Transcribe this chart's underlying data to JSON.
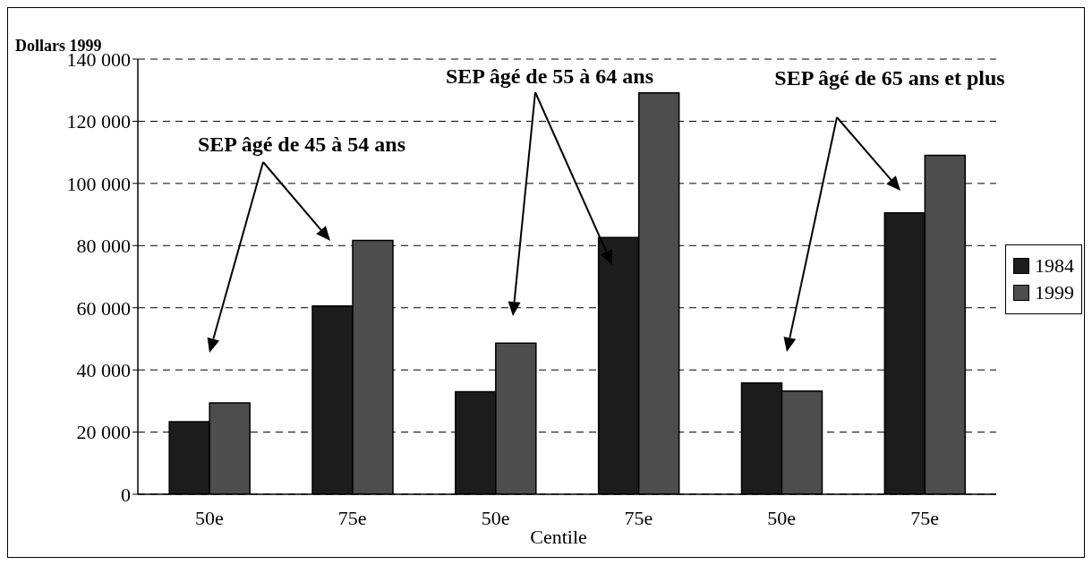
{
  "chart_data": {
    "type": "bar",
    "ylabel": "Dollars 1999",
    "xlabel": "Centile",
    "categories": [
      "50e",
      "75e",
      "50e",
      "75e",
      "50e",
      "75e"
    ],
    "series": [
      {
        "name": "1984",
        "color": "#1c1c1c",
        "values": [
          23300,
          60600,
          33000,
          82600,
          35800,
          90500
        ]
      },
      {
        "name": "1999",
        "color": "#4d4d4d",
        "values": [
          29400,
          81700,
          48600,
          129100,
          33200,
          109000
        ]
      }
    ],
    "ylim": [
      0,
      140000
    ],
    "yticks": [
      {
        "value": 0,
        "label": "0"
      },
      {
        "value": 20000,
        "label": "20 000"
      },
      {
        "value": 40000,
        "label": "40 000"
      },
      {
        "value": 60000,
        "label": "60 000"
      },
      {
        "value": 80000,
        "label": "80 000"
      },
      {
        "value": 100000,
        "label": "100 000"
      },
      {
        "value": 120000,
        "label": "120 000"
      },
      {
        "value": 140000,
        "label": "140 000"
      }
    ],
    "grid": "y",
    "legend": "right",
    "annotations": [
      "SEP âgé de 45 à 54 ans",
      "SEP âgé de 55 à 64 ans",
      "SEP âgé de 65 ans et plus"
    ]
  }
}
